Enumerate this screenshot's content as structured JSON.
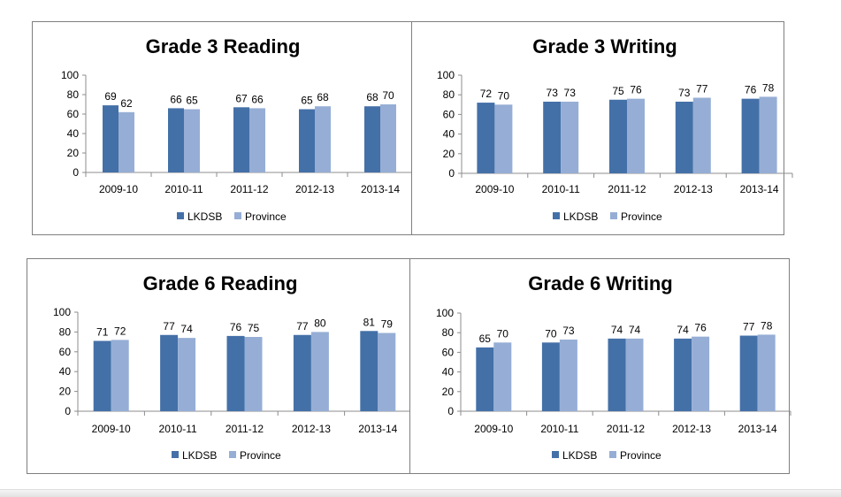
{
  "colors": {
    "lkdsb": "#4470a8",
    "province": "#96aed5",
    "axis": "#8c8c8c",
    "border": "#7f7f7f"
  },
  "chart_data": [
    {
      "type": "bar",
      "title": "Grade 3 Reading",
      "categories": [
        "2009-10",
        "2010-11",
        "2011-12",
        "2012-13",
        "2013-14"
      ],
      "series": [
        {
          "name": "LKDSB",
          "values": [
            69,
            66,
            67,
            65,
            68
          ]
        },
        {
          "name": "Province",
          "values": [
            62,
            65,
            66,
            68,
            70
          ]
        }
      ],
      "ylim": [
        0,
        100
      ],
      "yticks": [
        "0",
        "20",
        "40",
        "60",
        "80",
        "100"
      ],
      "legend": "bottom",
      "grid": false
    },
    {
      "type": "bar",
      "title": "Grade 3 Writing",
      "categories": [
        "2009-10",
        "2010-11",
        "2011-12",
        "2012-13",
        "2013-14"
      ],
      "series": [
        {
          "name": "LKDSB",
          "values": [
            72,
            73,
            75,
            73,
            76
          ]
        },
        {
          "name": "Province",
          "values": [
            70,
            73,
            76,
            77,
            78
          ]
        }
      ],
      "ylim": [
        0,
        100
      ],
      "yticks": [
        "0",
        "20",
        "40",
        "60",
        "80",
        "100"
      ],
      "legend": "bottom",
      "grid": false
    },
    {
      "type": "bar",
      "title": "Grade 6 Reading",
      "categories": [
        "2009-10",
        "2010-11",
        "2011-12",
        "2012-13",
        "2013-14"
      ],
      "series": [
        {
          "name": "LKDSB",
          "values": [
            71,
            77,
            76,
            77,
            81
          ]
        },
        {
          "name": "Province",
          "values": [
            72,
            74,
            75,
            80,
            79
          ]
        }
      ],
      "ylim": [
        0,
        100
      ],
      "yticks": [
        "0",
        "20",
        "40",
        "60",
        "80",
        "100"
      ],
      "legend": "bottom",
      "grid": false
    },
    {
      "type": "bar",
      "title": "Grade 6 Writing",
      "categories": [
        "2009-10",
        "2010-11",
        "2011-12",
        "2012-13",
        "2013-14"
      ],
      "series": [
        {
          "name": "LKDSB",
          "values": [
            65,
            70,
            74,
            74,
            77
          ]
        },
        {
          "name": "Province",
          "values": [
            70,
            73,
            74,
            76,
            78
          ]
        }
      ],
      "ylim": [
        0,
        100
      ],
      "yticks": [
        "0",
        "20",
        "40",
        "60",
        "80",
        "100"
      ],
      "legend": "bottom",
      "grid": false
    }
  ]
}
